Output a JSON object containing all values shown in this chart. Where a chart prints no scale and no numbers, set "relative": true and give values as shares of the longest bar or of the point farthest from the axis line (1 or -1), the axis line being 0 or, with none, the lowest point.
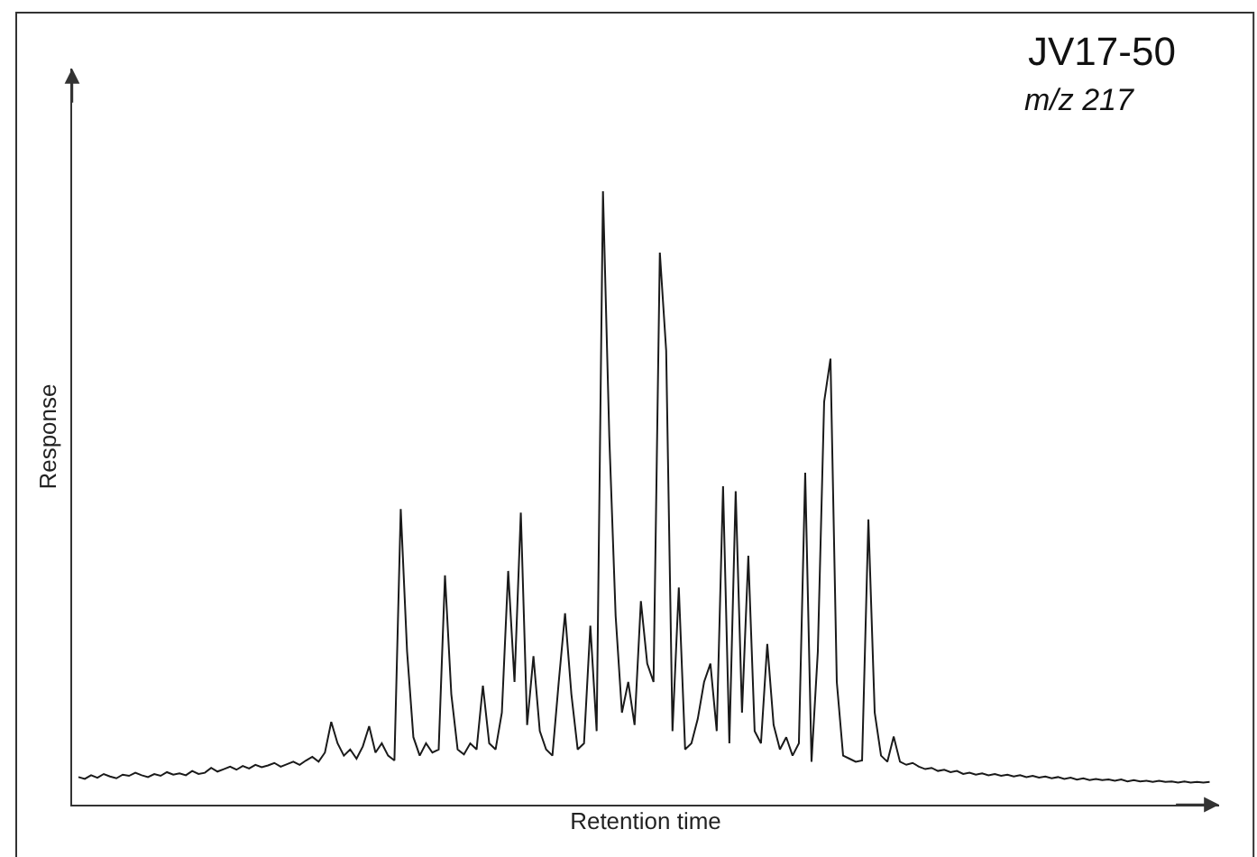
{
  "chart_data": {
    "type": "line",
    "title": "JV17-50",
    "subtitle": "m/z 217",
    "xlabel": "Retention time",
    "ylabel": "Response",
    "relative": true,
    "categories": [
      null,
      null,
      null,
      null,
      null,
      null,
      null,
      null,
      null,
      null,
      null,
      null,
      null,
      null,
      null,
      null,
      null,
      null,
      null,
      null,
      null,
      null,
      null,
      null,
      null,
      null,
      null,
      null,
      null,
      null,
      null,
      null,
      null,
      null,
      null,
      null,
      null,
      null,
      null,
      null,
      null,
      null,
      null,
      null,
      null,
      null,
      null,
      null,
      null,
      null,
      null,
      null,
      null,
      null,
      null,
      null,
      null,
      null,
      null,
      null,
      null,
      null,
      null,
      null,
      null,
      null,
      null,
      null,
      null,
      null,
      null,
      null,
      null,
      null,
      null,
      null,
      null,
      null,
      null,
      null,
      null,
      null,
      null,
      null,
      null,
      null,
      null,
      null,
      null,
      null,
      null,
      null,
      null,
      null,
      null,
      null,
      null,
      null,
      null,
      null,
      null,
      null,
      null,
      null,
      null,
      null,
      null,
      null,
      null,
      null,
      null,
      null,
      null,
      null,
      null,
      null,
      null,
      null,
      null,
      null,
      null,
      null,
      null,
      null,
      null,
      null,
      null,
      null,
      null,
      null,
      null,
      null,
      null,
      null,
      null,
      null,
      null,
      null,
      null,
      null,
      null,
      null,
      null,
      null,
      null,
      null,
      null,
      null,
      null,
      null,
      null,
      null,
      null,
      null,
      null,
      null,
      null,
      null,
      null,
      null,
      null,
      null,
      null,
      null,
      null,
      null,
      null,
      null,
      null,
      null,
      null,
      null,
      null,
      null,
      null,
      null,
      null,
      null,
      null,
      null
    ],
    "series": [
      {
        "color": "#1a1a1a",
        "values": [
          0.045,
          0.042,
          0.048,
          0.044,
          0.05,
          0.046,
          0.043,
          0.049,
          0.047,
          0.052,
          0.048,
          0.045,
          0.05,
          0.047,
          0.053,
          0.049,
          0.051,
          0.048,
          0.055,
          0.05,
          0.052,
          0.06,
          0.054,
          0.058,
          0.062,
          0.057,
          0.063,
          0.059,
          0.065,
          0.061,
          0.064,
          0.068,
          0.062,
          0.066,
          0.07,
          0.065,
          0.072,
          0.078,
          0.07,
          0.085,
          0.135,
          0.1,
          0.08,
          0.09,
          0.075,
          0.095,
          0.128,
          0.085,
          0.1,
          0.08,
          0.072,
          0.482,
          0.25,
          0.11,
          0.08,
          0.1,
          0.085,
          0.09,
          0.374,
          0.18,
          0.09,
          0.082,
          0.1,
          0.09,
          0.194,
          0.1,
          0.09,
          0.15,
          0.381,
          0.2,
          0.476,
          0.13,
          0.242,
          0.12,
          0.09,
          0.08,
          0.2,
          0.312,
          0.18,
          0.09,
          0.1,
          0.292,
          0.12,
          1.0,
          0.6,
          0.308,
          0.15,
          0.2,
          0.13,
          0.332,
          0.23,
          0.2,
          0.9,
          0.74,
          0.12,
          0.354,
          0.09,
          0.1,
          0.14,
          0.2,
          0.23,
          0.12,
          0.519,
          0.1,
          0.511,
          0.15,
          0.406,
          0.12,
          0.1,
          0.262,
          0.13,
          0.09,
          0.11,
          0.08,
          0.1,
          0.541,
          0.07,
          0.25,
          0.657,
          0.727,
          0.2,
          0.08,
          0.075,
          0.07,
          0.072,
          0.465,
          0.15,
          0.08,
          0.07,
          0.111,
          0.07,
          0.065,
          0.068,
          0.062,
          0.058,
          0.06,
          0.055,
          0.057,
          0.053,
          0.055,
          0.05,
          0.052,
          0.049,
          0.051,
          0.048,
          0.05,
          0.047,
          0.049,
          0.046,
          0.048,
          0.045,
          0.047,
          0.044,
          0.046,
          0.043,
          0.045,
          0.042,
          0.044,
          0.041,
          0.043,
          0.04,
          0.042,
          0.04,
          0.041,
          0.039,
          0.041,
          0.038,
          0.04,
          0.038,
          0.039,
          0.037,
          0.039,
          0.037,
          0.038,
          0.036,
          0.038,
          0.036,
          0.037,
          0.036,
          0.037
        ]
      }
    ]
  }
}
